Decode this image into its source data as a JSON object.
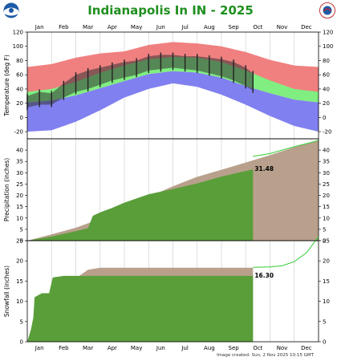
{
  "title": "Indianapolis In IN - 2025",
  "footer": "Image created: Sun, 2 Nov 2025 10:15 GMT",
  "logos": {
    "left": "NOAA",
    "right": "NATIONAL WEATHER SERVICE"
  },
  "months": [
    "Jan",
    "Feb",
    "Mar",
    "Apr",
    "May",
    "Jun",
    "Jul",
    "Aug",
    "Sep",
    "Oct",
    "Nov",
    "Dec"
  ],
  "chart_data": [
    {
      "type": "area",
      "ylabel": "Temperature (deg F)",
      "ylim": [
        -30,
        120
      ],
      "yticks": [
        -20,
        0,
        20,
        40,
        60,
        80,
        100,
        120
      ],
      "x_unit": "month",
      "series": [
        {
          "kind": "record-high",
          "color": "#f08080",
          "x": [
            0,
            1,
            2,
            3,
            4,
            5,
            6,
            7,
            8,
            9,
            10,
            11,
            12
          ],
          "high": [
            71,
            75,
            84,
            90,
            93,
            102,
            106,
            104,
            100,
            92,
            81,
            73,
            71
          ],
          "low": [
            30,
            33,
            42,
            52,
            60,
            70,
            74,
            73,
            67,
            56,
            45,
            34,
            30
          ]
        },
        {
          "kind": "normal-range",
          "color": "#80ee80",
          "x": [
            0,
            1,
            2,
            3,
            4,
            5,
            6,
            7,
            8,
            9,
            10,
            11,
            12
          ],
          "high": [
            36,
            40,
            50,
            63,
            73,
            82,
            85,
            84,
            78,
            66,
            52,
            40,
            36
          ],
          "low": [
            21,
            24,
            31,
            41,
            51,
            61,
            65,
            63,
            56,
            44,
            34,
            25,
            21
          ]
        },
        {
          "kind": "record-low",
          "color": "#8080f0",
          "x": [
            0,
            1,
            2,
            3,
            4,
            5,
            6,
            7,
            8,
            9,
            10,
            11,
            12
          ],
          "high": [
            21,
            24,
            31,
            41,
            51,
            61,
            65,
            63,
            56,
            44,
            34,
            25,
            21
          ],
          "low": [
            -20,
            -18,
            -6,
            10,
            28,
            40,
            48,
            43,
            32,
            18,
            2,
            -12,
            -20
          ]
        },
        {
          "kind": "observed-2025",
          "color": "#333333",
          "x": [
            0,
            0.5,
            1,
            1.5,
            2,
            2.5,
            3,
            3.5,
            4,
            4.5,
            5,
            5.5,
            6,
            6.5,
            7,
            7.5,
            8,
            8.5,
            9,
            9.3
          ],
          "high": [
            30,
            36,
            34,
            48,
            60,
            66,
            70,
            74,
            78,
            80,
            86,
            88,
            88,
            86,
            86,
            84,
            82,
            78,
            70,
            62
          ],
          "low": [
            14,
            18,
            18,
            28,
            36,
            40,
            46,
            52,
            56,
            60,
            66,
            68,
            70,
            68,
            66,
            62,
            58,
            52,
            44,
            38
          ]
        }
      ]
    },
    {
      "type": "area",
      "ylabel": "Precipitation (inches)",
      "ylim": [
        0,
        45
      ],
      "yticks": [
        0,
        5,
        10,
        15,
        20,
        25,
        30,
        35,
        40
      ],
      "label": "31.48",
      "series": [
        {
          "kind": "normal-cumulative",
          "color": "#b8a08c",
          "x": [
            0,
            1,
            2,
            3,
            4,
            5,
            6,
            7,
            8,
            9,
            10,
            11,
            12
          ],
          "values": [
            0,
            2.8,
            5.7,
            9.6,
            14.5,
            19.4,
            24,
            28.2,
            31.3,
            34.5,
            37.8,
            41.3,
            44.5
          ]
        },
        {
          "kind": "observed-cumulative",
          "color": "#5a9e3a",
          "x": [
            0,
            1,
            2,
            2.5,
            2.7,
            3,
            3.5,
            4,
            5,
            6,
            7,
            8,
            9,
            9.3
          ],
          "values": [
            0,
            1.8,
            4.2,
            5.5,
            11,
            12.5,
            14.5,
            16.8,
            20.5,
            22.8,
            25.3,
            28.3,
            30.8,
            31.48
          ]
        },
        {
          "kind": "year-2024-line",
          "color": "#33cc33",
          "x": [
            9.3,
            10,
            11,
            12
          ],
          "values": [
            37.2,
            38.5,
            41.5,
            44.2
          ]
        }
      ]
    },
    {
      "type": "area",
      "ylabel": "Snowfall (inches)",
      "ylim": [
        0,
        25
      ],
      "yticks": [
        0,
        5,
        10,
        15,
        20,
        25
      ],
      "label": "16.30",
      "series": [
        {
          "kind": "normal-cumulative",
          "color": "#b8a08c",
          "x": [
            0,
            0.5,
            1,
            1.5,
            2,
            2.5,
            3,
            9.3
          ],
          "values": [
            0,
            4,
            8.5,
            12.5,
            15.7,
            17.8,
            18.3,
            18.3
          ]
        },
        {
          "kind": "observed-cumulative",
          "color": "#5a9e3a",
          "x": [
            0,
            0.15,
            0.25,
            0.3,
            0.6,
            0.9,
            1.05,
            1.5,
            3,
            9.3
          ],
          "values": [
            0,
            3,
            6,
            11,
            12,
            12,
            15.9,
            16.3,
            16.3,
            16.3
          ]
        },
        {
          "kind": "year-2024-line",
          "color": "#33cc33",
          "x": [
            9.3,
            10,
            10.5,
            11,
            11.5,
            12
          ],
          "values": [
            18.4,
            18.5,
            18.8,
            19.8,
            22,
            26
          ]
        }
      ]
    }
  ]
}
